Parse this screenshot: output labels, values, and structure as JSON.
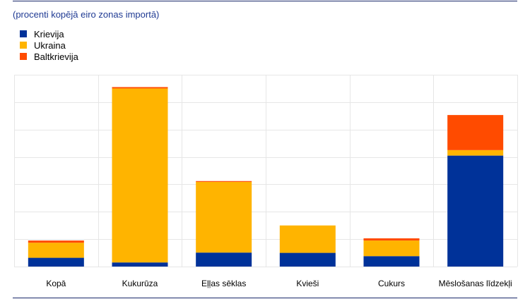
{
  "subtitle": "(procenti kopējā eiro zonas importā)",
  "legend": [
    {
      "label": "Krievija",
      "color": "#003299"
    },
    {
      "label": "Ukraina",
      "color": "#ffb400"
    },
    {
      "label": "Baltkrievija",
      "color": "#ff4b00"
    }
  ],
  "chart_data": {
    "type": "bar",
    "stacked": true,
    "categories": [
      "Kopā",
      "Kukurūza",
      "Eļļas sēklas",
      "Kvieši",
      "Cukurs",
      "Mēslošanas līdzekļi"
    ],
    "series": [
      {
        "name": "Krievija",
        "values": [
          3.2,
          1.5,
          5.1,
          5.0,
          3.8,
          40.5
        ],
        "color": "#003299"
      },
      {
        "name": "Ukraina",
        "values": [
          5.5,
          63.5,
          25.8,
          10.0,
          5.7,
          2.0
        ],
        "color": "#ffb400"
      },
      {
        "name": "Baltkrievija",
        "values": [
          0.8,
          0.5,
          0.3,
          0.0,
          0.8,
          12.8
        ],
        "color": "#ff4b00"
      }
    ],
    "ylim": [
      0,
      70
    ],
    "grid": true,
    "title": "",
    "xlabel": "",
    "ylabel": ""
  }
}
